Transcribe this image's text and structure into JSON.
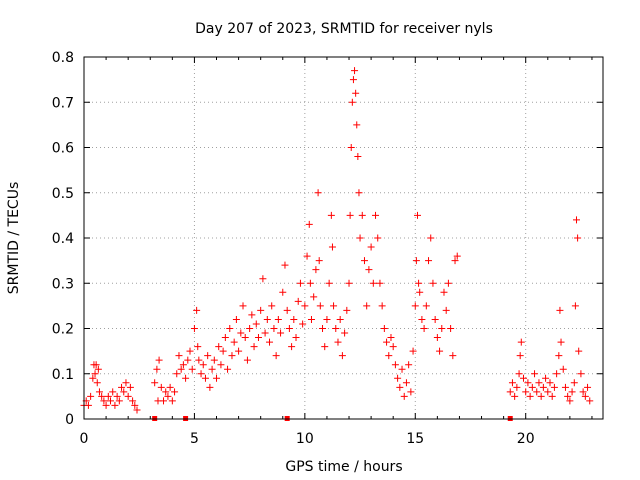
{
  "chart_data": {
    "type": "scatter",
    "title": "Day 207 of 2023, SRMTID for receiver nyls",
    "xlabel": "GPS time / hours",
    "ylabel": "SRMTID / TECUs",
    "xlim": [
      0,
      23.5
    ],
    "ylim": [
      0,
      0.8
    ],
    "x_ticks": [
      0,
      5,
      10,
      15,
      20
    ],
    "y_ticks": [
      0,
      0.1,
      0.2,
      0.3,
      0.4,
      0.5,
      0.6,
      0.7,
      0.8
    ],
    "x_tick_labels": [
      "0",
      "5",
      "10",
      "15",
      "20"
    ],
    "y_tick_labels": [
      "0",
      "0.1",
      "0.2",
      "0.3",
      "0.4",
      "0.5",
      "0.6",
      "0.7",
      "0.8"
    ],
    "grid": true,
    "marker": "+",
    "color": "#ff0000",
    "baseline_markers_x": [
      3.2,
      4.6,
      9.2,
      19.3
    ],
    "series": [
      {
        "name": "SRMTID",
        "points": [
          [
            0.0,
            0.03
          ],
          [
            0.1,
            0.04
          ],
          [
            0.2,
            0.03
          ],
          [
            0.3,
            0.05
          ],
          [
            0.4,
            0.09
          ],
          [
            0.45,
            0.12
          ],
          [
            0.5,
            0.1
          ],
          [
            0.55,
            0.12
          ],
          [
            0.6,
            0.08
          ],
          [
            0.65,
            0.11
          ],
          [
            0.7,
            0.06
          ],
          [
            0.8,
            0.05
          ],
          [
            0.9,
            0.04
          ],
          [
            1.0,
            0.03
          ],
          [
            1.1,
            0.05
          ],
          [
            1.2,
            0.04
          ],
          [
            1.3,
            0.06
          ],
          [
            1.4,
            0.03
          ],
          [
            1.5,
            0.05
          ],
          [
            1.6,
            0.04
          ],
          [
            1.7,
            0.07
          ],
          [
            1.8,
            0.06
          ],
          [
            1.9,
            0.08
          ],
          [
            2.0,
            0.05
          ],
          [
            2.1,
            0.07
          ],
          [
            2.2,
            0.04
          ],
          [
            2.3,
            0.03
          ],
          [
            2.4,
            0.02
          ],
          [
            3.2,
            0.08
          ],
          [
            3.3,
            0.11
          ],
          [
            3.35,
            0.04
          ],
          [
            3.4,
            0.13
          ],
          [
            3.5,
            0.07
          ],
          [
            3.6,
            0.04
          ],
          [
            3.7,
            0.06
          ],
          [
            3.8,
            0.05
          ],
          [
            3.9,
            0.07
          ],
          [
            4.0,
            0.04
          ],
          [
            4.1,
            0.06
          ],
          [
            4.2,
            0.1
          ],
          [
            4.3,
            0.14
          ],
          [
            4.4,
            0.11
          ],
          [
            4.5,
            0.12
          ],
          [
            4.6,
            0.09
          ],
          [
            4.7,
            0.13
          ],
          [
            4.8,
            0.15
          ],
          [
            4.9,
            0.11
          ],
          [
            5.0,
            0.2
          ],
          [
            5.1,
            0.24
          ],
          [
            5.15,
            0.16
          ],
          [
            5.2,
            0.13
          ],
          [
            5.3,
            0.1
          ],
          [
            5.4,
            0.12
          ],
          [
            5.5,
            0.09
          ],
          [
            5.6,
            0.14
          ],
          [
            5.7,
            0.07
          ],
          [
            5.8,
            0.11
          ],
          [
            5.9,
            0.13
          ],
          [
            6.0,
            0.09
          ],
          [
            6.1,
            0.16
          ],
          [
            6.2,
            0.12
          ],
          [
            6.3,
            0.15
          ],
          [
            6.4,
            0.18
          ],
          [
            6.5,
            0.11
          ],
          [
            6.6,
            0.2
          ],
          [
            6.7,
            0.14
          ],
          [
            6.8,
            0.17
          ],
          [
            6.9,
            0.22
          ],
          [
            7.0,
            0.15
          ],
          [
            7.1,
            0.19
          ],
          [
            7.2,
            0.25
          ],
          [
            7.3,
            0.18
          ],
          [
            7.4,
            0.13
          ],
          [
            7.5,
            0.2
          ],
          [
            7.6,
            0.23
          ],
          [
            7.7,
            0.16
          ],
          [
            7.8,
            0.21
          ],
          [
            7.9,
            0.18
          ],
          [
            8.0,
            0.24
          ],
          [
            8.1,
            0.31
          ],
          [
            8.2,
            0.19
          ],
          [
            8.3,
            0.22
          ],
          [
            8.4,
            0.17
          ],
          [
            8.5,
            0.25
          ],
          [
            8.6,
            0.2
          ],
          [
            8.7,
            0.14
          ],
          [
            8.8,
            0.22
          ],
          [
            8.9,
            0.19
          ],
          [
            9.0,
            0.28
          ],
          [
            9.1,
            0.34
          ],
          [
            9.2,
            0.24
          ],
          [
            9.3,
            0.2
          ],
          [
            9.4,
            0.16
          ],
          [
            9.5,
            0.22
          ],
          [
            9.6,
            0.18
          ],
          [
            9.7,
            0.26
          ],
          [
            9.8,
            0.3
          ],
          [
            9.9,
            0.21
          ],
          [
            10.0,
            0.25
          ],
          [
            10.1,
            0.36
          ],
          [
            10.2,
            0.43
          ],
          [
            10.25,
            0.3
          ],
          [
            10.3,
            0.22
          ],
          [
            10.4,
            0.27
          ],
          [
            10.5,
            0.33
          ],
          [
            10.6,
            0.5
          ],
          [
            10.65,
            0.35
          ],
          [
            10.7,
            0.25
          ],
          [
            10.8,
            0.2
          ],
          [
            10.9,
            0.16
          ],
          [
            11.0,
            0.22
          ],
          [
            11.1,
            0.3
          ],
          [
            11.2,
            0.45
          ],
          [
            11.25,
            0.38
          ],
          [
            11.3,
            0.25
          ],
          [
            11.4,
            0.2
          ],
          [
            11.5,
            0.17
          ],
          [
            11.6,
            0.22
          ],
          [
            11.7,
            0.14
          ],
          [
            11.8,
            0.19
          ],
          [
            11.9,
            0.24
          ],
          [
            12.0,
            0.3
          ],
          [
            12.05,
            0.45
          ],
          [
            12.1,
            0.6
          ],
          [
            12.15,
            0.7
          ],
          [
            12.2,
            0.75
          ],
          [
            12.25,
            0.77
          ],
          [
            12.3,
            0.72
          ],
          [
            12.35,
            0.65
          ],
          [
            12.4,
            0.58
          ],
          [
            12.45,
            0.5
          ],
          [
            12.5,
            0.4
          ],
          [
            12.6,
            0.45
          ],
          [
            12.7,
            0.35
          ],
          [
            12.8,
            0.25
          ],
          [
            12.9,
            0.33
          ],
          [
            13.0,
            0.38
          ],
          [
            13.1,
            0.3
          ],
          [
            13.2,
            0.45
          ],
          [
            13.3,
            0.4
          ],
          [
            13.4,
            0.3
          ],
          [
            13.5,
            0.25
          ],
          [
            13.6,
            0.2
          ],
          [
            13.7,
            0.17
          ],
          [
            13.8,
            0.14
          ],
          [
            13.9,
            0.18
          ],
          [
            14.0,
            0.16
          ],
          [
            14.1,
            0.12
          ],
          [
            14.2,
            0.09
          ],
          [
            14.3,
            0.07
          ],
          [
            14.4,
            0.11
          ],
          [
            14.5,
            0.05
          ],
          [
            14.6,
            0.08
          ],
          [
            14.7,
            0.12
          ],
          [
            14.8,
            0.06
          ],
          [
            14.9,
            0.15
          ],
          [
            15.0,
            0.25
          ],
          [
            15.05,
            0.35
          ],
          [
            15.1,
            0.45
          ],
          [
            15.15,
            0.3
          ],
          [
            15.2,
            0.28
          ],
          [
            15.3,
            0.22
          ],
          [
            15.4,
            0.2
          ],
          [
            15.5,
            0.25
          ],
          [
            15.6,
            0.35
          ],
          [
            15.7,
            0.4
          ],
          [
            15.8,
            0.3
          ],
          [
            15.9,
            0.22
          ],
          [
            16.0,
            0.18
          ],
          [
            16.1,
            0.15
          ],
          [
            16.2,
            0.2
          ],
          [
            16.3,
            0.28
          ],
          [
            16.4,
            0.24
          ],
          [
            16.5,
            0.3
          ],
          [
            16.6,
            0.2
          ],
          [
            16.7,
            0.14
          ],
          [
            16.8,
            0.35
          ],
          [
            16.9,
            0.36
          ],
          [
            19.3,
            0.06
          ],
          [
            19.4,
            0.08
          ],
          [
            19.5,
            0.05
          ],
          [
            19.6,
            0.07
          ],
          [
            19.7,
            0.1
          ],
          [
            19.75,
            0.14
          ],
          [
            19.8,
            0.17
          ],
          [
            19.9,
            0.09
          ],
          [
            20.0,
            0.06
          ],
          [
            20.1,
            0.08
          ],
          [
            20.2,
            0.05
          ],
          [
            20.3,
            0.07
          ],
          [
            20.4,
            0.1
          ],
          [
            20.5,
            0.06
          ],
          [
            20.6,
            0.08
          ],
          [
            20.7,
            0.05
          ],
          [
            20.8,
            0.07
          ],
          [
            20.9,
            0.09
          ],
          [
            21.0,
            0.06
          ],
          [
            21.1,
            0.08
          ],
          [
            21.2,
            0.05
          ],
          [
            21.3,
            0.07
          ],
          [
            21.4,
            0.1
          ],
          [
            21.5,
            0.14
          ],
          [
            21.55,
            0.24
          ],
          [
            21.6,
            0.17
          ],
          [
            21.7,
            0.11
          ],
          [
            21.8,
            0.07
          ],
          [
            21.9,
            0.05
          ],
          [
            22.0,
            0.04
          ],
          [
            22.1,
            0.06
          ],
          [
            22.2,
            0.08
          ],
          [
            22.25,
            0.25
          ],
          [
            22.3,
            0.44
          ],
          [
            22.35,
            0.4
          ],
          [
            22.4,
            0.15
          ],
          [
            22.5,
            0.1
          ],
          [
            22.6,
            0.06
          ],
          [
            22.7,
            0.05
          ],
          [
            22.8,
            0.07
          ],
          [
            22.9,
            0.04
          ]
        ]
      }
    ]
  }
}
